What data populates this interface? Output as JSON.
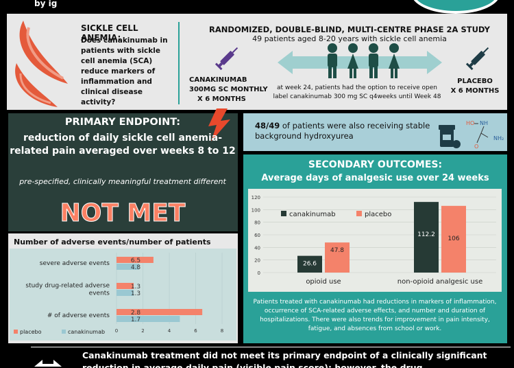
{
  "header": {
    "title_fragment": "by ig"
  },
  "sca": {
    "title": "SICKLE CELL ANEMIA:",
    "question": "Does canakinumab in patients with sickle cell anemia (SCA) reduce markers of inflammation and clinical disease activity?"
  },
  "study": {
    "title": "RANDOMIZED, DOUBLE-BLIND, MULTI-CENTRE PHASE 2A STUDY",
    "subtitle": "49 patients aged 8-20 years with sickle cell anemia",
    "arm_left_1": "CANAKINUMAB",
    "arm_left_2": "300MG SC MONTHLY",
    "arm_left_3": "X 6 MONTHS",
    "arm_right_1": "PLACEBO",
    "arm_right_2": "X 6 MONTHS",
    "open_label": "at week 24, patients had the option to receive open label canakinumab 300 mg SC q4weeks until Week 48"
  },
  "primary": {
    "title": "PRIMARY ENDPOINT:",
    "body": "reduction of daily sickle cell anemia-related pain averaged over weeks 8 to 12",
    "italic": "pre-specified, clinically meaningful treatment different",
    "result": "NOT MET"
  },
  "hydroxy": {
    "bold": "48/49",
    "text": " of patients were also receiving stable background hydroxyurea",
    "mol_ho": "HO",
    "mol_nh": "NH",
    "mol_o": "O",
    "mol_nh2": "NH₂"
  },
  "secondary": {
    "title": "SECONDARY OUTCOMES:",
    "subtitle": "Average days of analgesic use over 24 weeks",
    "paragraph": "Patients treated with canakinumab had reductions in markers of inflammation, occurrence of SCA-related adverse effects, and number and duration of hospitalizations. There were also trends for  improvement in pain intensity, fatigue, and absences from school or work."
  },
  "adverse": {
    "title": "Number of adverse events/number of patients"
  },
  "footer": {
    "line1": "Canakinumab treatment did not meet its primary endpoint of a clinically significant",
    "line2": "reduction in average daily pain (visible pain score); however, the drug"
  },
  "colors": {
    "teal": "#2aa198",
    "dark": "#2a3f3a",
    "canakinumab": "#263a35",
    "placebo": "#f4826a",
    "adv_canakinumab": "#9ac8d2"
  },
  "chart_data": [
    {
      "type": "bar",
      "title": "Average days of analgesic use over 24 weeks",
      "categories": [
        "opioid use",
        "non-opioid analgesic use"
      ],
      "series": [
        {
          "name": "canakinumab",
          "values": [
            26.6,
            112.2
          ]
        },
        {
          "name": "placebo",
          "values": [
            47.8,
            106
          ]
        }
      ],
      "ylim": [
        0,
        120
      ],
      "yticks": [
        0,
        10,
        20,
        30,
        40,
        50,
        60,
        70,
        80,
        90,
        100,
        110,
        120
      ],
      "legend": "top-left",
      "grid": true
    },
    {
      "type": "bar",
      "orientation": "horizontal",
      "title": "Number of adverse events/number of patients",
      "categories": [
        "severe adverse events",
        "study drug-related adverse events",
        "# of adverse events"
      ],
      "series": [
        {
          "name": "placebo",
          "values": [
            6.5,
            1.3,
            2.8
          ],
          "bar_lengths": [
            2.8,
            1.3,
            6.5
          ]
        },
        {
          "name": "canakinumab",
          "values": [
            4.8,
            1.3,
            1.7
          ],
          "bar_lengths": [
            1.7,
            1.3,
            4.8
          ]
        }
      ],
      "xlim": [
        0,
        8
      ],
      "xticks": [
        0,
        2,
        4,
        6,
        8
      ],
      "legend": "bottom-left"
    }
  ]
}
